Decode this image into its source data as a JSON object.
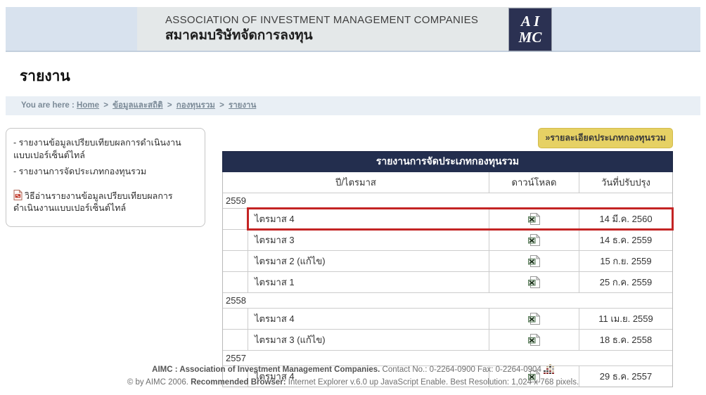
{
  "header": {
    "org_name_en": "ASSOCIATION OF INVESTMENT MANAGEMENT COMPANIES",
    "org_name_th": "สมาคมบริษัทจัดการลงทุน",
    "logo_line1": "A I",
    "logo_line2": "MC"
  },
  "page": {
    "title": "รายงาน"
  },
  "breadcrumb": {
    "prefix": "You are here :",
    "separator": ">",
    "items": [
      "Home",
      "ข้อมูลและสถิติ",
      "กองทุนรวม",
      "รายงาน"
    ]
  },
  "sidebar": {
    "links": [
      "- รายงานข้อมูลเปรียบเทียบผลการดำเนินงานแบบเปอร์เซ็นต์ไทล์",
      "- รายงานการจัดประเภทกองทุนรวม"
    ],
    "pdf_link": "วิธีอ่านรายงานข้อมูลเปรียบเทียบผลการดำเนินงานแบบเปอร์เซ็นต์ไทล์"
  },
  "main": {
    "detail_button": "»รายละเอียดประเภทกองทุนรวม",
    "table": {
      "title": "รายงานการจัดประเภทกองทุนรวม",
      "columns": [
        "ปี/ไตรมาส",
        "ดาวน์โหลด",
        "วันที่ปรับปรุง"
      ],
      "rows": [
        {
          "type": "year",
          "label": "2559"
        },
        {
          "type": "quarter",
          "label": "ไตรมาส 4",
          "date": "14 มี.ค. 2560",
          "highlighted": true
        },
        {
          "type": "quarter",
          "label": "ไตรมาส 3",
          "date": "14 ธ.ค. 2559",
          "highlighted": false
        },
        {
          "type": "quarter",
          "label": "ไตรมาส 2 (แก้ไข)",
          "date": "15 ก.ย. 2559",
          "highlighted": false
        },
        {
          "type": "quarter",
          "label": "ไตรมาส 1",
          "date": "25 ก.ค. 2559",
          "highlighted": false
        },
        {
          "type": "year",
          "label": "2558"
        },
        {
          "type": "quarter",
          "label": "ไตรมาส 4",
          "date": "11 เม.ย. 2559",
          "highlighted": false
        },
        {
          "type": "quarter",
          "label": "ไตรมาส 3 (แก้ไข)",
          "date": "18 ธ.ค. 2558",
          "highlighted": false
        },
        {
          "type": "year",
          "label": "2557"
        },
        {
          "type": "quarter",
          "label": "ไตรมาส 4",
          "date": "29 ธ.ค. 2557",
          "highlighted": false
        }
      ]
    }
  },
  "footer": {
    "line1_bold": "AIMC : Association of Investment Management Companies.",
    "line1_rest": " Contact No.: 0-2264-0900 Fax: 0-2264-0904",
    "line2_pre": "© by AIMC 2006. ",
    "line2_bold": "Recommended Browser:",
    "line2_rest": " Internet Explorer v.6.0 up JavaScript Enable. Best Resolution: 1,024 x 768 pixels."
  },
  "colors": {
    "navy": "#232e4e",
    "header_band": "#d8e2ee",
    "highlight_red": "#c42424",
    "button_yellow": "#e6d164",
    "breadcrumb_bg": "#e9eff5"
  }
}
